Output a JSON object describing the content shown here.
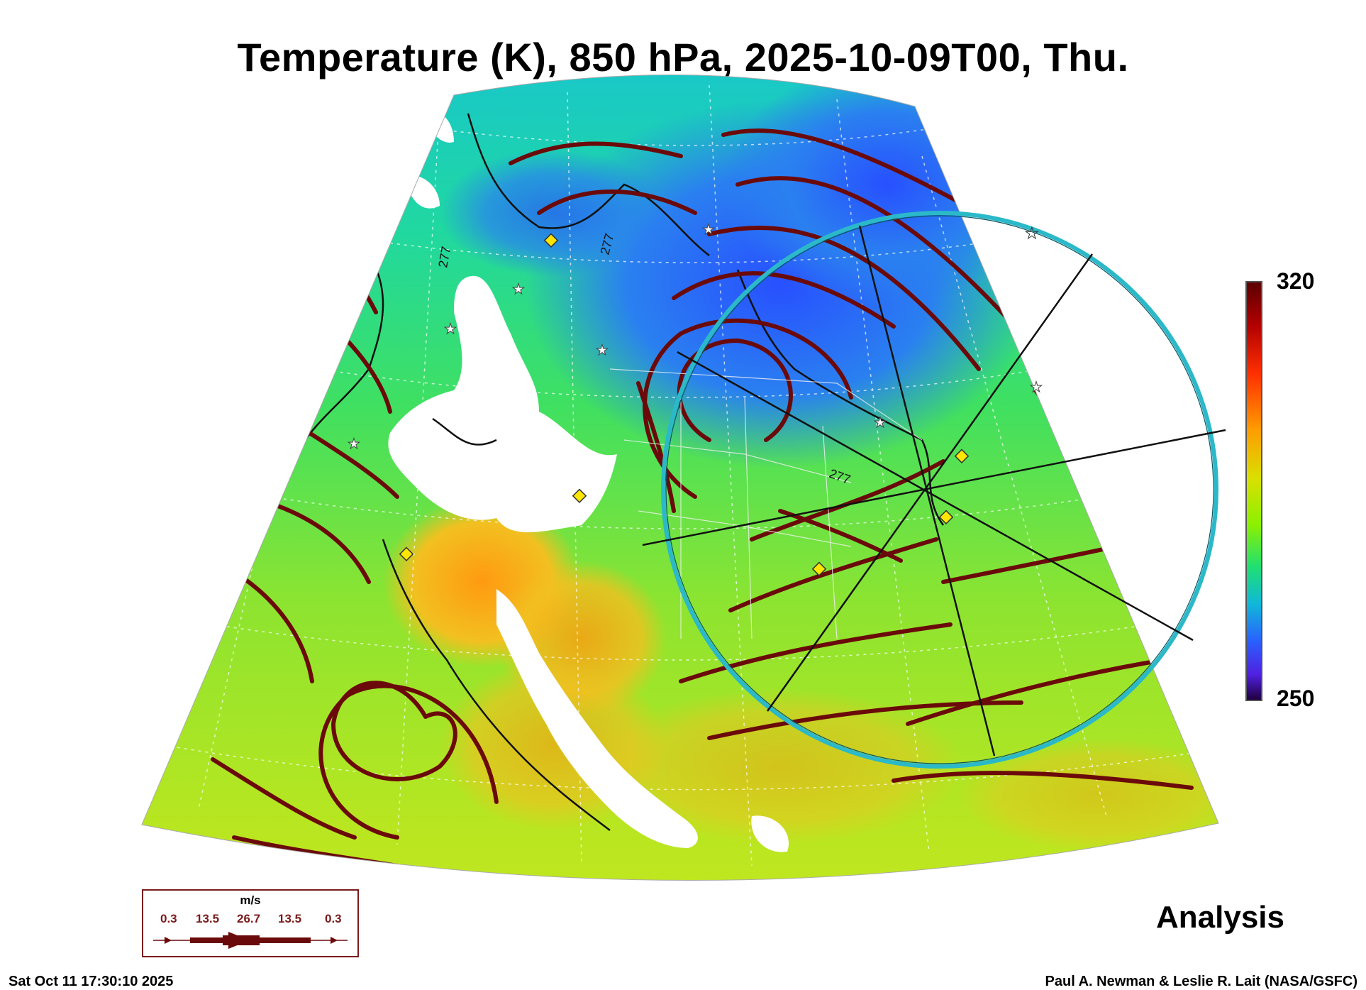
{
  "title": "Temperature (K), 850 hPa, 2025-10-09T00, Thu.",
  "colorbar": {
    "max_label": "320",
    "min_label": "250",
    "colors": [
      "#5c0000",
      "#ff3000",
      "#ff9a00",
      "#d9e000",
      "#8cf000",
      "#20e070",
      "#10b8d8",
      "#2a60ff",
      "#200040"
    ]
  },
  "contour_labels": [
    "277",
    "277",
    "277"
  ],
  "analysis_label": "Analysis",
  "wind_legend": {
    "units": "m/s",
    "values": [
      "0.3",
      "13.5",
      "26.7",
      "13.5",
      "0.3"
    ]
  },
  "footer": {
    "timestamp": "Sat Oct 11 17:30:10 2025",
    "credit": "Paul A. Newman & Leslie R. Lait (NASA/GSFC)"
  },
  "colors": {
    "streamline": "#6b0a0a",
    "range_ring": "#2bb9c9",
    "marker": "#ffe600"
  }
}
